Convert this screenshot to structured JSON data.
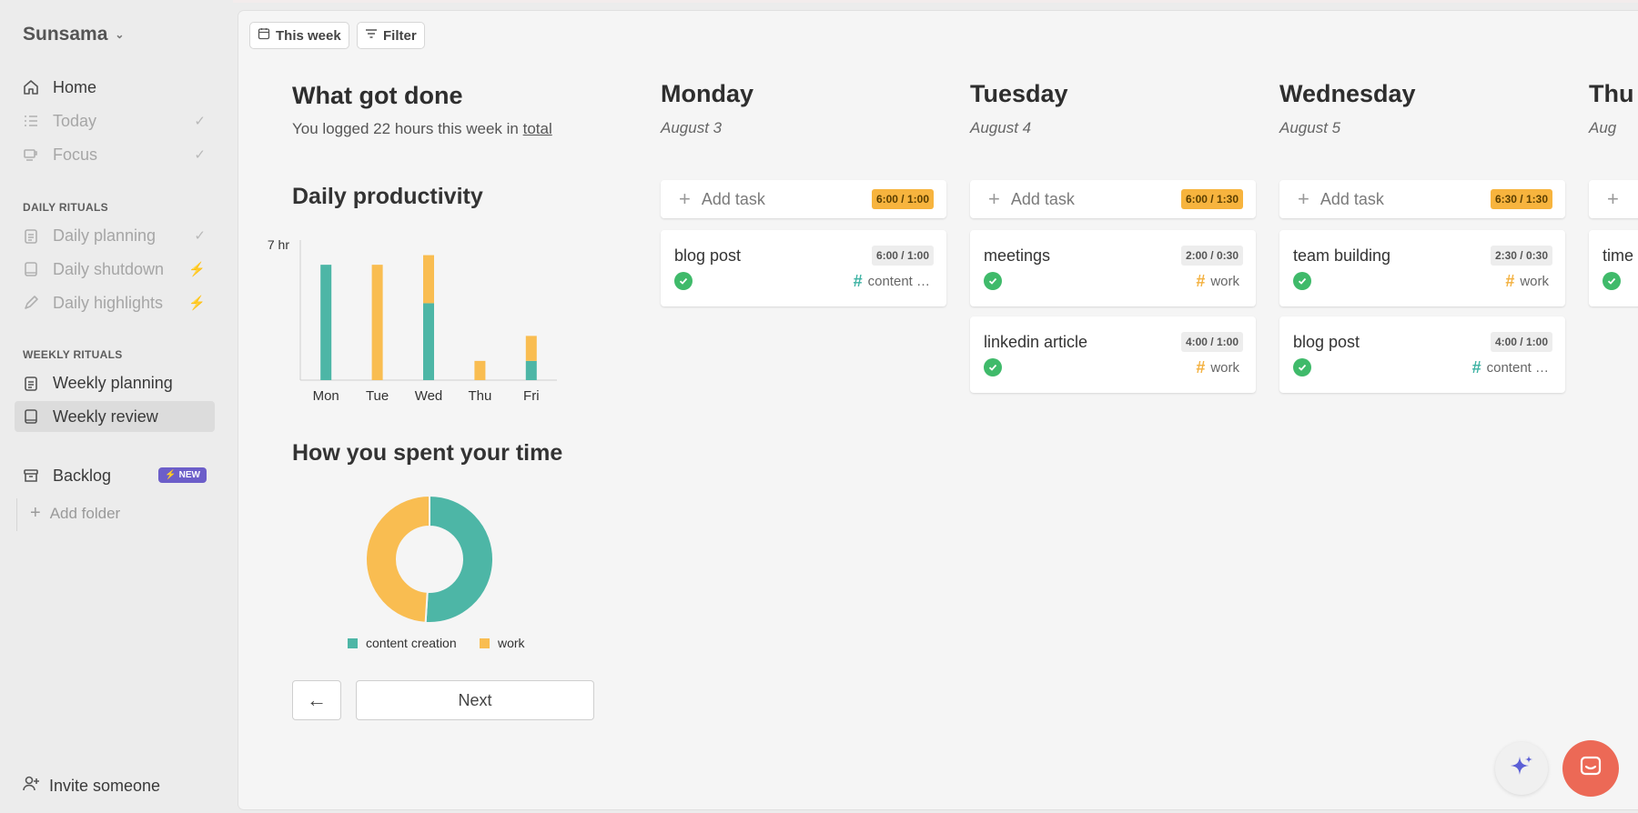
{
  "sidebar": {
    "brand": "Sunsama",
    "nav_main": [
      {
        "label": "Home",
        "icon": "home-icon"
      },
      {
        "label": "Today",
        "icon": "list-icon"
      },
      {
        "label": "Focus",
        "icon": "cup-icon"
      }
    ],
    "daily_rituals_label": "DAILY RITUALS",
    "daily_rituals": [
      {
        "label": "Daily planning"
      },
      {
        "label": "Daily shutdown"
      },
      {
        "label": "Daily highlights"
      }
    ],
    "weekly_rituals_label": "WEEKLY RITUALS",
    "weekly_rituals": [
      {
        "label": "Weekly planning"
      },
      {
        "label": "Weekly review",
        "active": true
      }
    ],
    "backlog": {
      "label": "Backlog",
      "badge": "NEW"
    },
    "add_folder": "Add folder",
    "invite": "Invite someone"
  },
  "toolbar": {
    "this_week": "This week",
    "filter": "Filter"
  },
  "summary": {
    "title": "What got done",
    "subtitle_prefix": "You logged 22 hours this week in ",
    "subtitle_link": "total"
  },
  "productivity": {
    "title": "Daily productivity"
  },
  "time_spent": {
    "title": "How you spent your time"
  },
  "nav_buttons": {
    "back": "←",
    "next": "Next"
  },
  "chart_data": [
    {
      "type": "bar",
      "title": "Daily productivity",
      "categories": [
        "Mon",
        "Tue",
        "Wed",
        "Thu",
        "Fri"
      ],
      "stacked": true,
      "ytick": "7 hr",
      "ylim": [
        0,
        7
      ],
      "series": [
        {
          "name": "content creation",
          "color": "#4db6a6",
          "values": [
            6,
            0,
            4,
            0,
            1
          ]
        },
        {
          "name": "work",
          "color": "#f9bd51",
          "values": [
            0,
            6,
            2.5,
            1,
            1.3
          ]
        }
      ]
    },
    {
      "type": "pie",
      "title": "How you spent your time",
      "donut": true,
      "labels": [
        "content creation",
        "work"
      ],
      "values": [
        51,
        49
      ],
      "colors": [
        "#4db6a6",
        "#f9bd51"
      ],
      "legend": "bottom"
    }
  ],
  "days": [
    {
      "name": "Monday",
      "date": "August 3",
      "add_task": "Add task",
      "time": "6:00 / 1:00",
      "tasks": [
        {
          "title": "blog post",
          "time": "6:00 / 1:00",
          "tag": "content …",
          "tag_kind": "content"
        }
      ]
    },
    {
      "name": "Tuesday",
      "date": "August 4",
      "add_task": "Add task",
      "time": "6:00 / 1:30",
      "tasks": [
        {
          "title": "meetings",
          "time": "2:00 / 0:30",
          "tag": "work",
          "tag_kind": "work"
        },
        {
          "title": "linkedin article",
          "time": "4:00 / 1:00",
          "tag": "work",
          "tag_kind": "work"
        }
      ]
    },
    {
      "name": "Wednesday",
      "date": "August 5",
      "add_task": "Add task",
      "time": "6:30 / 1:30",
      "tasks": [
        {
          "title": "team building",
          "time": "2:30 / 0:30",
          "tag": "work",
          "tag_kind": "work"
        },
        {
          "title": "blog post",
          "time": "4:00 / 1:00",
          "tag": "content …",
          "tag_kind": "content"
        }
      ]
    },
    {
      "name": "Thu",
      "date": "Aug",
      "task_peek": "time"
    }
  ]
}
